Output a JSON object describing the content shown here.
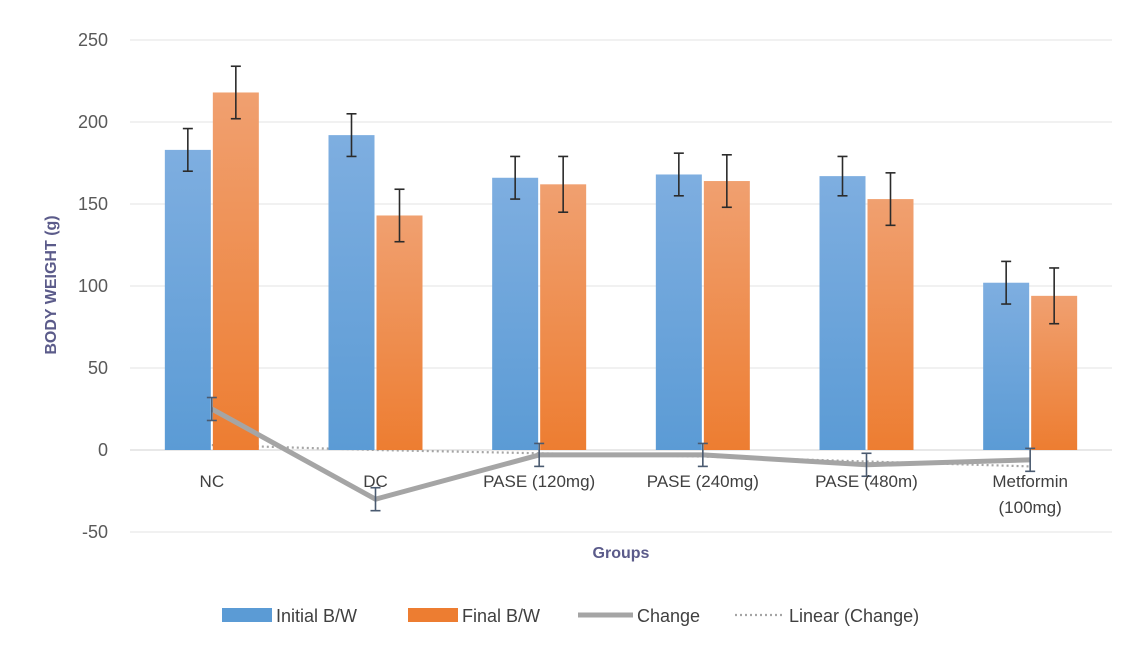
{
  "chart_data": {
    "type": "bar",
    "xlabel": "Groups",
    "ylabel": "BODY WEIGHT (g)",
    "ylim": [
      -50,
      250
    ],
    "yticks": [
      250,
      200,
      150,
      100,
      50,
      0,
      -50
    ],
    "grid": true,
    "legend_position": "bottom",
    "categories": [
      [
        "NC"
      ],
      [
        "DC"
      ],
      [
        "PASE (120mg)"
      ],
      [
        "PASE (240mg)"
      ],
      [
        "PASE (480m)"
      ],
      [
        "Metformin",
        "(100mg)"
      ]
    ],
    "series": [
      {
        "name": "Initial B/W",
        "type": "bar",
        "color": "#5b9bd5",
        "values": [
          183,
          192,
          166,
          168,
          167,
          102
        ],
        "errors": [
          13,
          13,
          13,
          13,
          12,
          13
        ]
      },
      {
        "name": "Final B/W",
        "type": "bar",
        "color": "#ed7d31",
        "values": [
          218,
          143,
          162,
          164,
          153,
          94
        ],
        "errors": [
          16,
          16,
          17,
          16,
          16,
          17
        ]
      },
      {
        "name": "Change",
        "type": "line",
        "color": "#a5a5a5",
        "values": [
          25,
          -30,
          -3,
          -3,
          -9,
          -6
        ],
        "errors": [
          7,
          7,
          7,
          7,
          7,
          7
        ]
      },
      {
        "name": "Linear (Change)",
        "type": "trendline",
        "color": "#a5a5a5",
        "values": [
          3,
          0,
          -2,
          -4,
          -7,
          -10
        ]
      }
    ]
  }
}
